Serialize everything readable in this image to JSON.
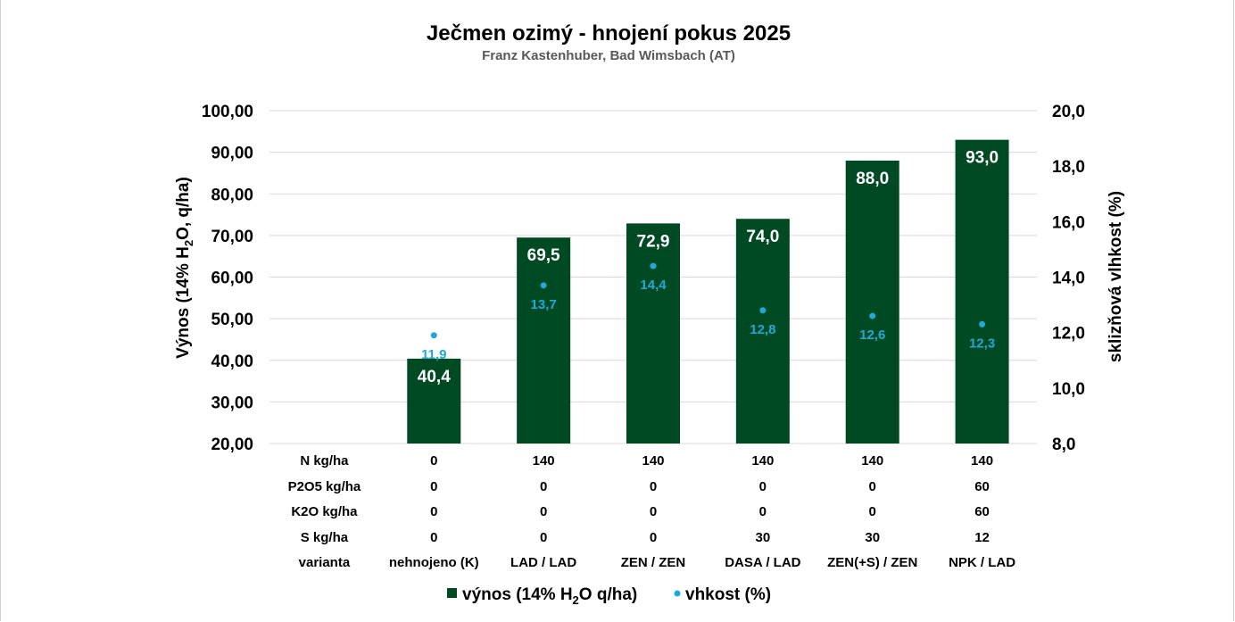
{
  "chart_data": {
    "type": "bar",
    "title": "Ječmen ozimý - hnojení pokus 2025",
    "subtitle": "Franz Kastenhuber, Bad Wimsbach (AT)",
    "ylabel_parts": [
      "Výnos (14% H",
      "2",
      "O, q/ha)"
    ],
    "y2label": "sklizňová vlhkost (%)",
    "ylim": [
      20,
      100
    ],
    "y2lim": [
      8,
      20
    ],
    "yticks": [
      "20,00",
      "30,00",
      "40,00",
      "50,00",
      "60,00",
      "70,00",
      "80,00",
      "90,00",
      "100,00"
    ],
    "y2ticks": [
      "8,0",
      "10,0",
      "12,0",
      "14,0",
      "16,0",
      "18,0",
      "20,0"
    ],
    "categories": [
      "",
      "nehnojeno (K)",
      "LAD / LAD",
      "ZEN / ZEN",
      "DASA / LAD",
      "ZEN(+S) / ZEN",
      "NPK / LAD"
    ],
    "series": [
      {
        "name_parts": [
          "výnos (14% H",
          "2",
          "O q/ha)"
        ],
        "kind": "bar",
        "color": "#004a23",
        "values": [
          null,
          40.4,
          69.5,
          72.9,
          74.0,
          88.0,
          93.0
        ],
        "labels": [
          "",
          "40,4",
          "69,5",
          "72,9",
          "74,0",
          "88,0",
          "93,0"
        ]
      },
      {
        "name": "vhkost (%)",
        "kind": "scatter",
        "axis": "right",
        "color": "#1fa8d8",
        "values": [
          null,
          11.9,
          13.7,
          14.4,
          12.8,
          12.6,
          12.3
        ],
        "labels": [
          "",
          "11,9",
          "13,7",
          "14,4",
          "12,8",
          "12,6",
          "12,3"
        ]
      }
    ],
    "table": {
      "row_headers": [
        "N kg/ha",
        "P2O5 kg/ha",
        "K2O kg/ha",
        "S kg/ha",
        "varianta"
      ],
      "rows": [
        [
          "",
          "0",
          "140",
          "140",
          "140",
          "140",
          "140"
        ],
        [
          "",
          "0",
          "0",
          "0",
          "0",
          "0",
          "60"
        ],
        [
          "",
          "0",
          "0",
          "0",
          "0",
          "0",
          "60"
        ],
        [
          "",
          "0",
          "0",
          "0",
          "30",
          "30",
          "12"
        ],
        [
          "",
          "nehnojeno (K)",
          "LAD / LAD",
          "ZEN / ZEN",
          "DASA / LAD",
          "ZEN(+S) / ZEN",
          "NPK / LAD"
        ]
      ]
    },
    "grid": true,
    "legend_position": "bottom"
  }
}
